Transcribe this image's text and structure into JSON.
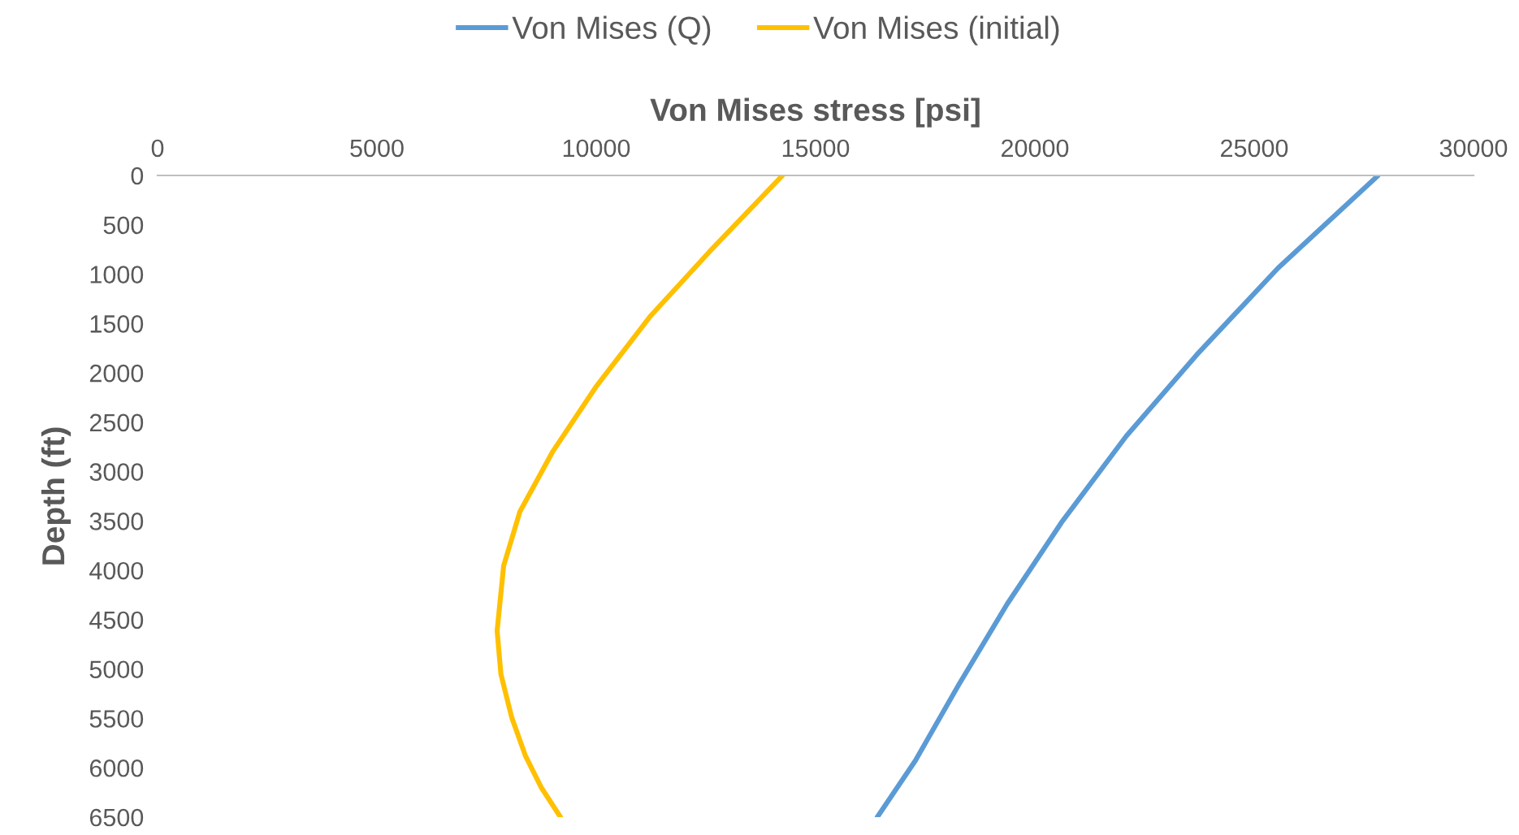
{
  "chart_data": {
    "type": "line",
    "xlabel": "Von Mises stress [psi]",
    "ylabel": "Depth (ft)",
    "xlim": [
      0,
      30000
    ],
    "xticks": [
      0,
      5000,
      10000,
      15000,
      20000,
      25000,
      30000
    ],
    "ylim": [
      6500,
      0
    ],
    "yticks": [
      0,
      500,
      1000,
      1500,
      2000,
      2500,
      3000,
      3500,
      4000,
      4500,
      5000,
      5500,
      6000,
      6500
    ],
    "grid": false,
    "legend": "top",
    "marker": "none",
    "line_style": "solid",
    "series": [
      {
        "name": "Von Mises (Q)",
        "color": "#5b9bd5",
        "x": [
          27826,
          25544,
          23692,
          22086,
          20604,
          19370,
          18259,
          17272,
          16407
        ],
        "values": [
          0,
          938,
          1816,
          2639,
          3517,
          4340,
          5163,
          5930,
          6500
        ]
      },
      {
        "name": "Von Mises (initial)",
        "color": "#ffc000",
        "x": [
          14247,
          12580,
          11222,
          9988,
          9000,
          8259,
          7889,
          7741,
          7827,
          8074,
          8383,
          8753,
          9185
        ],
        "values": [
          0,
          773,
          1432,
          2145,
          2803,
          3407,
          3955,
          4613,
          5052,
          5491,
          5875,
          6204,
          6500
        ]
      }
    ]
  }
}
